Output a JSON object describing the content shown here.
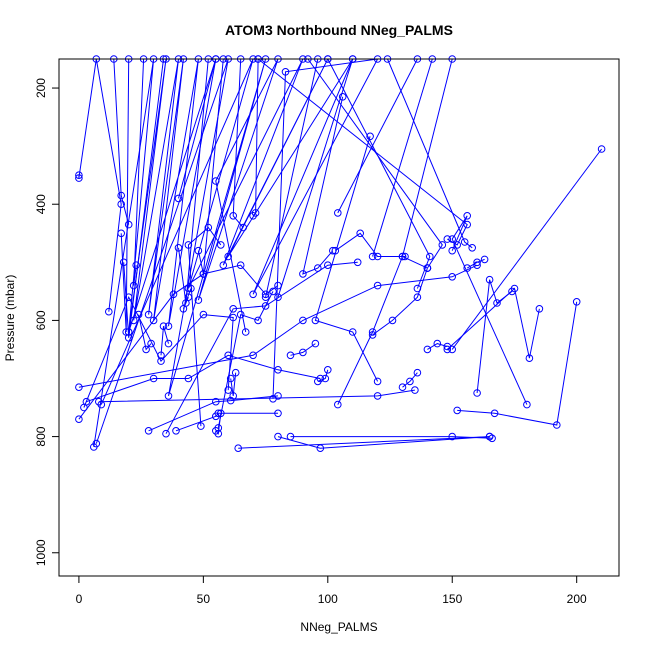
{
  "chart_data": {
    "type": "line",
    "title": "ATOM3 Northbound NNeg_PALMS",
    "xlabel": "NNeg_PALMS",
    "ylabel": "Pressure (mbar)",
    "xlim": [
      -8,
      217
    ],
    "ylim": [
      1040,
      150
    ],
    "y_reversed": true,
    "x_ticks": [
      0,
      50,
      100,
      150,
      200
    ],
    "y_ticks": [
      200,
      400,
      600,
      800,
      1000
    ],
    "grid": false,
    "legend": "none",
    "marker": "open-circle",
    "color": "#0000ff",
    "series": [
      {
        "points": [
          [
            0,
            350
          ],
          [
            0,
            355
          ],
          [
            7,
            150
          ],
          [
            17,
            400
          ],
          [
            12,
            585
          ]
        ]
      },
      {
        "points": [
          [
            6,
            818
          ],
          [
            30,
            150
          ],
          [
            20,
            620
          ],
          [
            35,
            150
          ],
          [
            22,
            600
          ],
          [
            40,
            150
          ],
          [
            28,
            590
          ],
          [
            42,
            150
          ],
          [
            30,
            600
          ],
          [
            48,
            150
          ],
          [
            36,
            610
          ],
          [
            55,
            150
          ],
          [
            20,
            620
          ]
        ]
      },
      {
        "points": [
          [
            7,
            812
          ],
          [
            60,
            150
          ],
          [
            36,
            730
          ],
          [
            75,
            150
          ],
          [
            48,
            565
          ],
          [
            80,
            150
          ],
          [
            55,
            360
          ],
          [
            67,
            620
          ]
        ]
      },
      {
        "points": [
          [
            9,
            745
          ],
          [
            70,
            150
          ],
          [
            44,
            545
          ],
          [
            90,
            150
          ],
          [
            58,
            505
          ],
          [
            100,
            150
          ],
          [
            60,
            490
          ],
          [
            110,
            150
          ],
          [
            70,
            555
          ],
          [
            120,
            150
          ],
          [
            83,
            172
          ],
          [
            78,
            735
          ]
        ]
      },
      {
        "points": [
          [
            0,
            770
          ],
          [
            38,
            555
          ],
          [
            50,
            520
          ],
          [
            65,
            505
          ],
          [
            75,
            555
          ],
          [
            80,
            540
          ]
        ]
      },
      {
        "points": [
          [
            0,
            715
          ],
          [
            70,
            660
          ],
          [
            90,
            600
          ],
          [
            120,
            540
          ],
          [
            150,
            525
          ],
          [
            160,
            505
          ]
        ]
      },
      {
        "points": [
          [
            2,
            750
          ],
          [
            20,
            560
          ],
          [
            33,
            670
          ],
          [
            50,
            590
          ],
          [
            62,
            595
          ],
          [
            60,
            720
          ]
        ]
      },
      {
        "points": [
          [
            3,
            740
          ],
          [
            30,
            700
          ],
          [
            44,
            700
          ],
          [
            60,
            660
          ],
          [
            80,
            685
          ],
          [
            97,
            700
          ]
        ]
      },
      {
        "points": [
          [
            8,
            740
          ],
          [
            120,
            730
          ],
          [
            135,
            720
          ]
        ]
      },
      {
        "points": [
          [
            28,
            790
          ],
          [
            55,
            740
          ],
          [
            61,
            738
          ],
          [
            80,
            730
          ]
        ]
      },
      {
        "points": [
          [
            35,
            795
          ],
          [
            62,
            580
          ],
          [
            75,
            575
          ],
          [
            100,
            505
          ],
          [
            112,
            500
          ]
        ]
      },
      {
        "points": [
          [
            39,
            790
          ],
          [
            55,
            765
          ],
          [
            56,
            760
          ],
          [
            80,
            760
          ]
        ]
      },
      {
        "points": [
          [
            49,
            782
          ],
          [
            44,
            470
          ],
          [
            52,
            440
          ],
          [
            57,
            470
          ]
        ]
      },
      {
        "points": [
          [
            56,
            785
          ],
          [
            65,
            590
          ],
          [
            72,
            600
          ],
          [
            78,
            550
          ]
        ]
      },
      {
        "points": [
          [
            64,
            820
          ],
          [
            165,
            800
          ]
        ]
      },
      {
        "points": [
          [
            80,
            800
          ],
          [
            97,
            820
          ],
          [
            165,
            800
          ]
        ]
      },
      {
        "points": [
          [
            85,
            800
          ],
          [
            150,
            800
          ],
          [
            166,
            803
          ]
        ]
      },
      {
        "points": [
          [
            150,
            650
          ],
          [
            210,
            305
          ]
        ]
      },
      {
        "points": [
          [
            148,
            650
          ],
          [
            175,
            545
          ],
          [
            181,
            665
          ],
          [
            185,
            580
          ]
        ]
      },
      {
        "points": [
          [
            152,
            755
          ],
          [
            167,
            760
          ],
          [
            192,
            780
          ],
          [
            200,
            568
          ]
        ]
      },
      {
        "points": [
          [
            160,
            725
          ],
          [
            165,
            530
          ],
          [
            168,
            570
          ],
          [
            174,
            550
          ]
        ]
      },
      {
        "points": [
          [
            180,
            745
          ],
          [
            150,
            460
          ],
          [
            156,
            420
          ],
          [
            150,
            480
          ]
        ]
      },
      {
        "points": [
          [
            140,
            510
          ],
          [
            130,
            490
          ],
          [
            118,
            620
          ],
          [
            104,
            745
          ]
        ]
      },
      {
        "points": [
          [
            103,
            480
          ],
          [
            113,
            450
          ],
          [
            120,
            490
          ],
          [
            131,
            490
          ]
        ]
      },
      {
        "points": [
          [
            106,
            215
          ],
          [
            90,
            520
          ],
          [
            96,
            510
          ],
          [
            102,
            480
          ]
        ]
      },
      {
        "points": [
          [
            117,
            283
          ],
          [
            95,
            600
          ],
          [
            110,
            620
          ],
          [
            120,
            705
          ]
        ]
      },
      {
        "points": [
          [
            140,
            510
          ],
          [
            136,
            560
          ],
          [
            126,
            600
          ],
          [
            118,
            625
          ]
        ]
      },
      {
        "points": [
          [
            156,
            510
          ],
          [
            160,
            500
          ],
          [
            163,
            495
          ]
        ]
      },
      {
        "points": [
          [
            124,
            150
          ],
          [
            155,
            465
          ],
          [
            158,
            475
          ]
        ]
      },
      {
        "points": [
          [
            72,
            150
          ],
          [
            156,
            435
          ],
          [
            152,
            470
          ],
          [
            148,
            460
          ]
        ]
      },
      {
        "points": [
          [
            92,
            150
          ],
          [
            146,
            470
          ],
          [
            140,
            510
          ]
        ]
      },
      {
        "points": [
          [
            100,
            150
          ],
          [
            141,
            490
          ],
          [
            136,
            545
          ]
        ]
      },
      {
        "points": [
          [
            150,
            150
          ],
          [
            130,
            490
          ]
        ]
      },
      {
        "points": [
          [
            142,
            150
          ],
          [
            118,
            490
          ]
        ]
      },
      {
        "points": [
          [
            136,
            150
          ],
          [
            104,
            415
          ]
        ]
      },
      {
        "points": [
          [
            110,
            150
          ],
          [
            80,
            560
          ]
        ]
      },
      {
        "points": [
          [
            96,
            150
          ],
          [
            75,
            560
          ]
        ]
      },
      {
        "points": [
          [
            40,
            390
          ],
          [
            55,
            150
          ]
        ]
      },
      {
        "points": [
          [
            65,
            150
          ],
          [
            62,
            420
          ],
          [
            66,
            440
          ]
        ]
      },
      {
        "points": [
          [
            72,
            150
          ],
          [
            71,
            415
          ],
          [
            70,
            420
          ]
        ]
      },
      {
        "points": [
          [
            58,
            150
          ],
          [
            50,
            520
          ],
          [
            48,
            480
          ]
        ]
      },
      {
        "points": [
          [
            52,
            150
          ],
          [
            43,
            570
          ],
          [
            40,
            475
          ]
        ]
      },
      {
        "points": [
          [
            34,
            150
          ],
          [
            20,
            630
          ],
          [
            18,
            500
          ]
        ]
      },
      {
        "points": [
          [
            26,
            150
          ],
          [
            22,
            540
          ],
          [
            23,
            505
          ]
        ]
      },
      {
        "points": [
          [
            20,
            150
          ],
          [
            19,
            620
          ],
          [
            17,
            450
          ]
        ]
      },
      {
        "points": [
          [
            14,
            150
          ],
          [
            17,
            385
          ],
          [
            20,
            435
          ]
        ]
      },
      {
        "points": [
          [
            24,
            590
          ],
          [
            27,
            650
          ],
          [
            29,
            640
          ]
        ]
      },
      {
        "points": [
          [
            33,
            660
          ],
          [
            34,
            610
          ],
          [
            36,
            640
          ]
        ]
      },
      {
        "points": [
          [
            44,
            560
          ],
          [
            42,
            580
          ],
          [
            45,
            545
          ]
        ]
      },
      {
        "points": [
          [
            61,
            700
          ],
          [
            62,
            730
          ],
          [
            63,
            690
          ]
        ]
      },
      {
        "points": [
          [
            55,
            790
          ],
          [
            56,
            795
          ],
          [
            57,
            760
          ]
        ]
      },
      {
        "points": [
          [
            96,
            705
          ],
          [
            99,
            700
          ],
          [
            100,
            685
          ]
        ]
      },
      {
        "points": [
          [
            130,
            715
          ],
          [
            133,
            705
          ],
          [
            136,
            690
          ]
        ]
      },
      {
        "points": [
          [
            140,
            650
          ],
          [
            144,
            640
          ],
          [
            148,
            645
          ]
        ]
      },
      {
        "points": [
          [
            85,
            660
          ],
          [
            90,
            655
          ],
          [
            95,
            640
          ]
        ]
      }
    ]
  }
}
